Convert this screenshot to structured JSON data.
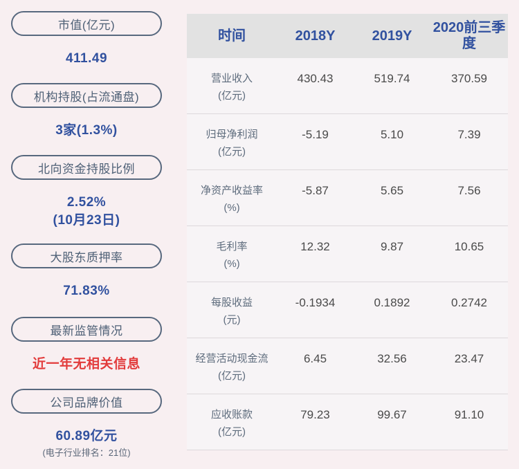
{
  "colors": {
    "page_bg": "#f8eff1",
    "accent_blue": "#31519f",
    "alert_red": "#e23b3b",
    "pill_border": "#57687e",
    "header_bg": "#e2e2e2",
    "value_gray": "#4a4a4a"
  },
  "left_panel": {
    "items": [
      {
        "label": "市值(亿元)",
        "value": "411.49"
      },
      {
        "label": "机构持股(占流通盘)",
        "value": "3家(1.3%)"
      },
      {
        "label": "北向资金持股比例",
        "value": "2.52%",
        "value2": "(10月23日)"
      },
      {
        "label": "大股东质押率",
        "value": "71.83%"
      },
      {
        "label": "最新监管情况",
        "value": "近一年无相关信息"
      },
      {
        "label": "公司品牌价值",
        "value": "60.89亿元",
        "note": "(电子行业排名：21位)"
      }
    ]
  },
  "table": {
    "headers": [
      "时间",
      "2018Y",
      "2019Y",
      "2020前三季度"
    ],
    "rows": [
      {
        "label": "营业收入",
        "unit": "(亿元)",
        "values": [
          "430.43",
          "519.74",
          "370.59"
        ]
      },
      {
        "label": "归母净利润",
        "unit": "(亿元)",
        "values": [
          "-5.19",
          "5.10",
          "7.39"
        ]
      },
      {
        "label": "净资产收益率",
        "unit": "(%)",
        "values": [
          "-5.87",
          "5.65",
          "7.56"
        ]
      },
      {
        "label": "毛利率",
        "unit": "(%)",
        "values": [
          "12.32",
          "9.87",
          "10.65"
        ]
      },
      {
        "label": "每股收益",
        "unit": "(元)",
        "values": [
          "-0.1934",
          "0.1892",
          "0.2742"
        ]
      },
      {
        "label": "经营活动现金流",
        "unit": "(亿元)",
        "values": [
          "6.45",
          "32.56",
          "23.47"
        ]
      },
      {
        "label": "应收账款",
        "unit": "(亿元)",
        "values": [
          "79.23",
          "99.67",
          "91.10"
        ]
      }
    ]
  },
  "chart_data": {
    "type": "table",
    "title": "",
    "columns": [
      "时间",
      "2018Y",
      "2019Y",
      "2020前三季度"
    ],
    "rows": [
      [
        "营业收入(亿元)",
        430.43,
        519.74,
        370.59
      ],
      [
        "归母净利润(亿元)",
        -5.19,
        5.1,
        7.39
      ],
      [
        "净资产收益率(%)",
        -5.87,
        5.65,
        7.56
      ],
      [
        "毛利率(%)",
        12.32,
        9.87,
        10.65
      ],
      [
        "每股收益(元)",
        -0.1934,
        0.1892,
        0.2742
      ],
      [
        "经营活动现金流(亿元)",
        6.45,
        32.56,
        23.47
      ],
      [
        "应收账款(亿元)",
        79.23,
        99.67,
        91.1
      ]
    ],
    "side_stats": [
      {
        "label": "市值(亿元)",
        "value": "411.49"
      },
      {
        "label": "机构持股(占流通盘)",
        "value": "3家(1.3%)"
      },
      {
        "label": "北向资金持股比例",
        "value": "2.52% (10月23日)"
      },
      {
        "label": "大股东质押率",
        "value": "71.83%"
      },
      {
        "label": "最新监管情况",
        "value": "近一年无相关信息"
      },
      {
        "label": "公司品牌价值",
        "value": "60.89亿元 (电子行业排名：21位)"
      }
    ]
  }
}
